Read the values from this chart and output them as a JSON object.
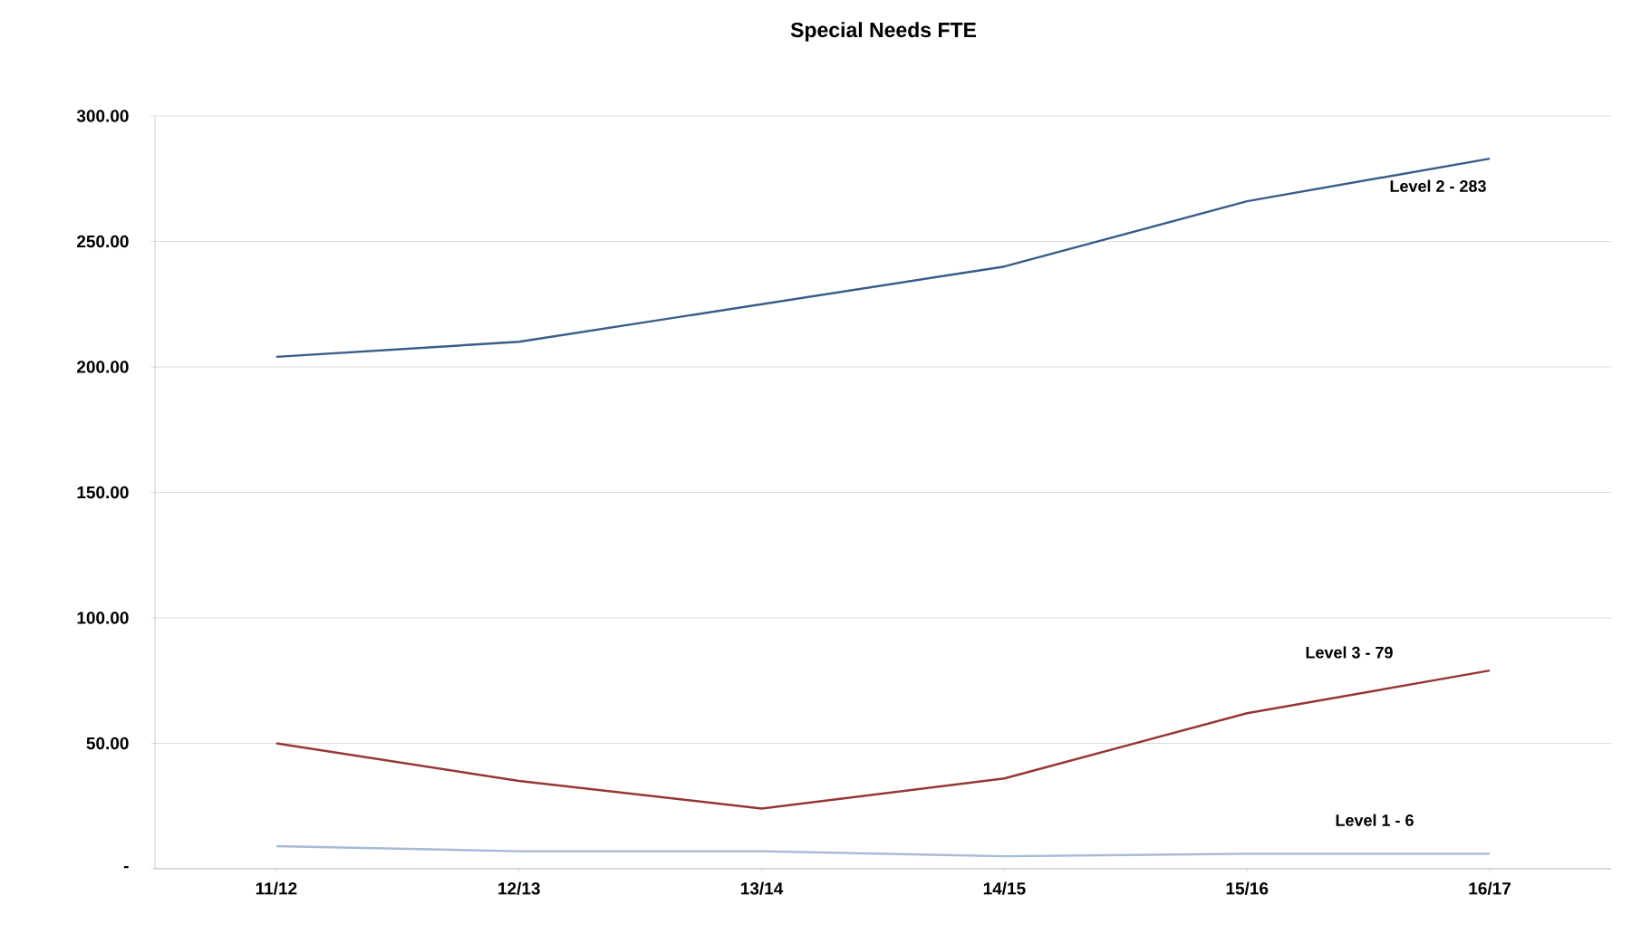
{
  "chart_data": {
    "type": "line",
    "title": "Special Needs FTE",
    "categories": [
      "11/12",
      "12/13",
      "13/14",
      "14/15",
      "15/16",
      "16/17"
    ],
    "series": [
      {
        "name": "Level 2 - 283",
        "color": "#385d8a",
        "values": [
          204,
          210,
          225,
          240,
          266,
          283
        ]
      },
      {
        "name": "Level 3 - 79",
        "color": "#953735",
        "values": [
          50,
          35,
          24,
          36,
          62,
          79
        ]
      },
      {
        "name": "Level 1 - 6",
        "color": "#a7b9d8",
        "values": [
          9,
          7,
          7,
          5,
          6,
          6
        ]
      }
    ],
    "ylim": [
      0,
      300
    ],
    "yticks": [
      {
        "value": 0,
        "label": "-"
      },
      {
        "value": 50,
        "label": "50.00"
      },
      {
        "value": 100,
        "label": "100.00"
      },
      {
        "value": 150,
        "label": "150.00"
      },
      {
        "value": 200,
        "label": "200.00"
      },
      {
        "value": 250,
        "label": "250.00"
      },
      {
        "value": 300,
        "label": "300.00"
      }
    ],
    "grid": "y",
    "legend": false,
    "marker": "none",
    "line_style": "solid"
  }
}
